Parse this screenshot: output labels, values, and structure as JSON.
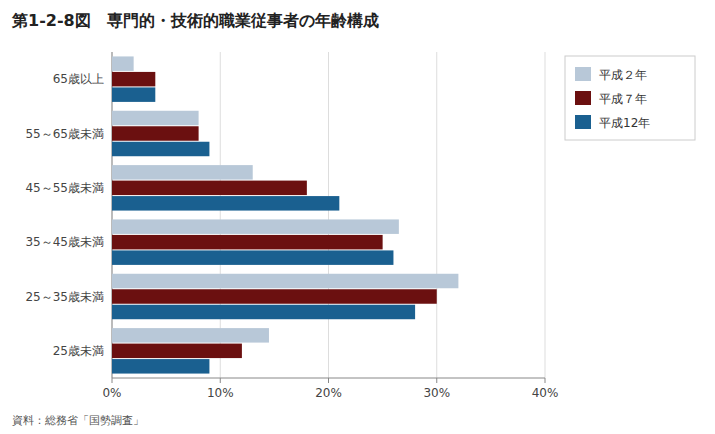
{
  "chart_data": {
    "type": "bar",
    "orientation": "horizontal",
    "title": "第1-2-8図　専門的・技術的職業従事者の年齢構成",
    "source": "資料：総務省「国勢調査」",
    "categories": [
      "65歳以上",
      "55～65歳未満",
      "45～55歳未満",
      "35～45歳未満",
      "25～35歳未満",
      "25歳未満"
    ],
    "series": [
      {
        "name": "平成２年",
        "color": "#b8c8d8",
        "values": [
          2.0,
          8.0,
          13.0,
          26.5,
          32.0,
          14.5
        ]
      },
      {
        "name": "平成７年",
        "color": "#6b1010",
        "values": [
          4.0,
          8.0,
          18.0,
          25.0,
          30.0,
          12.0
        ]
      },
      {
        "name": "平成12年",
        "color": "#1a6090",
        "values": [
          4.0,
          9.0,
          21.0,
          26.0,
          28.0,
          9.0
        ]
      }
    ],
    "xlim": [
      0,
      40
    ],
    "xticks": [
      {
        "value": 0,
        "label": "0%"
      },
      {
        "value": 10,
        "label": "10%"
      },
      {
        "value": 20,
        "label": "20%"
      },
      {
        "value": 30,
        "label": "30%"
      },
      {
        "value": 40,
        "label": "40%"
      }
    ],
    "grid": true,
    "legend": "right"
  }
}
